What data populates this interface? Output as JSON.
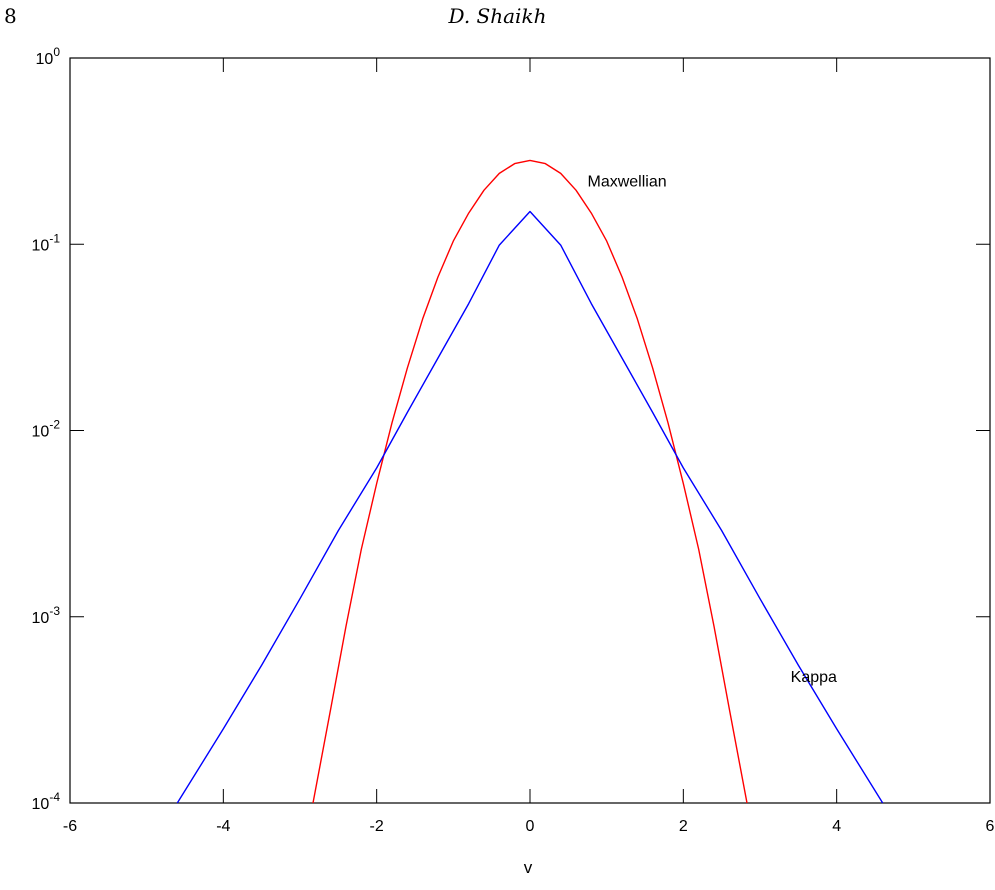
{
  "page": {
    "number": "8",
    "running_head": "D. Shaikh"
  },
  "chart_data": {
    "type": "line",
    "title": "",
    "xlabel": "v",
    "ylabel": "",
    "xlim": [
      -6,
      6
    ],
    "ylim": [
      0.0001,
      1
    ],
    "yscale": "log",
    "grid": false,
    "x_ticks": [
      "-6",
      "-4",
      "-2",
      "0",
      "2",
      "4",
      "6"
    ],
    "y_ticks": [
      {
        "base": "10",
        "exp": "0",
        "value": 1
      },
      {
        "base": "10",
        "exp": "-1",
        "value": 0.1
      },
      {
        "base": "10",
        "exp": "-2",
        "value": 0.01
      },
      {
        "base": "10",
        "exp": "-3",
        "value": 0.001
      },
      {
        "base": "10",
        "exp": "-4",
        "value": 0.0001
      }
    ],
    "series": [
      {
        "name": "Maxwellian",
        "color": "#ff0000",
        "x": [
          -2.83,
          -2.6,
          -2.4,
          -2.2,
          -2.0,
          -1.8,
          -1.6,
          -1.4,
          -1.2,
          -1.0,
          -0.8,
          -0.6,
          -0.4,
          -0.2,
          0.0,
          0.2,
          0.4,
          0.6,
          0.8,
          1.0,
          1.2,
          1.4,
          1.6,
          1.8,
          2.0,
          2.2,
          2.4,
          2.6,
          2.83
        ],
        "y": [
          0.0001,
          0.00032,
          0.00089,
          0.0023,
          0.0052,
          0.011,
          0.0216,
          0.0398,
          0.0668,
          0.104,
          0.147,
          0.195,
          0.24,
          0.271,
          0.282,
          0.271,
          0.24,
          0.195,
          0.147,
          0.104,
          0.0668,
          0.0398,
          0.0216,
          0.011,
          0.0052,
          0.0023,
          0.00089,
          0.00032,
          0.0001
        ]
      },
      {
        "name": "Kappa",
        "color": "#0000ff",
        "x": [
          -4.6,
          -4.0,
          -3.5,
          -3.0,
          -2.5,
          -2.0,
          -1.6,
          -1.2,
          -0.8,
          -0.4,
          0.0,
          0.4,
          0.8,
          1.2,
          1.6,
          2.0,
          2.5,
          3.0,
          3.5,
          4.0,
          4.6
        ],
        "y": [
          0.0001,
          0.00025,
          0.00055,
          0.00125,
          0.0029,
          0.0063,
          0.0125,
          0.0245,
          0.048,
          0.099,
          0.15,
          0.099,
          0.048,
          0.0245,
          0.0125,
          0.0063,
          0.0029,
          0.00125,
          0.00055,
          0.00025,
          0.0001
        ]
      }
    ],
    "annotations": [
      {
        "text": "Maxwellian",
        "x": 0.75,
        "y": 0.22
      },
      {
        "text": "Kappa",
        "x": 3.4,
        "y": 0.00048
      }
    ]
  }
}
